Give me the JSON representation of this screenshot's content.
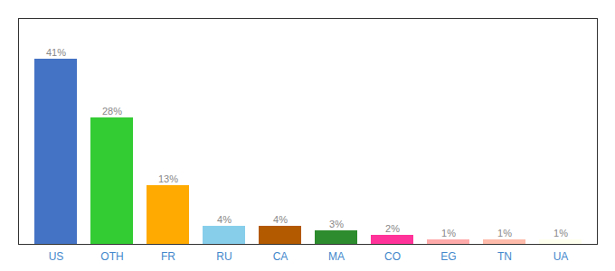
{
  "chart_data": {
    "type": "bar",
    "categories": [
      "US",
      "OTH",
      "FR",
      "RU",
      "CA",
      "MA",
      "CO",
      "EG",
      "TN",
      "UA"
    ],
    "values": [
      41,
      28,
      13,
      4,
      4,
      3,
      2,
      1,
      1,
      1
    ],
    "value_labels": [
      "41%",
      "28%",
      "13%",
      "4%",
      "4%",
      "3%",
      "2%",
      "1%",
      "1%",
      "1%"
    ],
    "colors": [
      "#4472c4",
      "#33cc33",
      "#ffaa00",
      "#87ceeb",
      "#b35900",
      "#2d8c2d",
      "#ff3399",
      "#ffaaaa",
      "#ffbbaa",
      "#ffffee"
    ],
    "ylim": [
      0,
      50
    ],
    "grid": false,
    "data_labels": true,
    "tick_labels": "x"
  }
}
